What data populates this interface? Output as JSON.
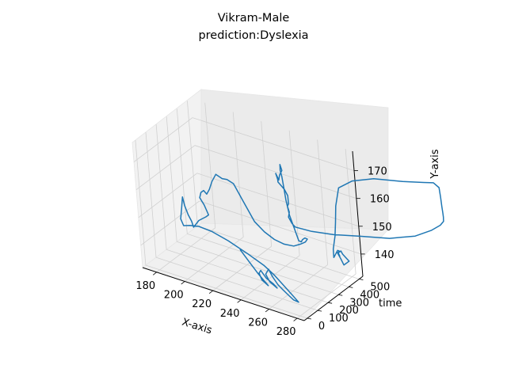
{
  "chart_data": {
    "type": "line",
    "projection": "3d",
    "title": [
      "Vikram-Male",
      "prediction:Dyslexia"
    ],
    "xlabel": "X-axis",
    "ylabel": "Y-axis",
    "zlabel": "time",
    "x_ticks": [
      "180",
      "200",
      "220",
      "240",
      "260",
      "280"
    ],
    "time_ticks": [
      "0",
      "100",
      "200",
      "300",
      "400",
      "500"
    ],
    "y_ticks": [
      "140",
      "150",
      "160",
      "170"
    ],
    "grid": true,
    "line_color": "#1f77b4",
    "series": [
      {
        "points": [
          [
            232,
            145,
            100
          ],
          [
            238,
            142,
            95
          ],
          [
            244,
            139,
            90
          ],
          [
            249,
            137,
            85
          ],
          [
            252,
            136,
            80
          ],
          [
            247,
            137,
            88
          ],
          [
            245,
            139,
            93
          ],
          [
            246,
            140,
            97
          ],
          [
            250,
            138,
            92
          ],
          [
            255,
            137,
            88
          ],
          [
            258,
            136,
            84
          ],
          [
            252,
            137,
            95
          ],
          [
            249,
            139,
            102
          ],
          [
            251,
            141,
            107
          ],
          [
            254,
            139,
            100
          ],
          [
            258,
            137,
            93
          ],
          [
            262,
            136,
            86
          ],
          [
            266,
            135,
            80
          ],
          [
            270,
            134,
            75
          ],
          [
            274,
            134,
            70
          ],
          [
            268,
            136,
            78
          ],
          [
            262,
            138,
            86
          ],
          [
            256,
            140,
            94
          ],
          [
            248,
            142,
            104
          ],
          [
            236,
            144,
            112
          ],
          [
            222,
            146,
            122
          ],
          [
            210,
            147,
            132
          ],
          [
            200,
            147,
            140
          ],
          [
            193,
            146,
            146
          ],
          [
            188,
            145,
            150
          ],
          [
            186,
            147,
            154
          ],
          [
            187,
            151,
            158
          ],
          [
            188,
            155,
            161
          ],
          [
            189,
            152,
            162
          ],
          [
            191,
            149,
            163
          ],
          [
            193,
            147,
            164
          ],
          [
            194,
            145,
            165
          ],
          [
            198,
            148,
            168
          ],
          [
            203,
            150,
            172
          ],
          [
            205,
            151,
            174
          ],
          [
            202,
            154,
            178
          ],
          [
            199,
            156,
            181
          ],
          [
            200,
            158,
            183
          ],
          [
            202,
            159,
            184
          ],
          [
            204,
            158,
            185
          ],
          [
            206,
            160,
            188
          ],
          [
            208,
            163,
            192
          ],
          [
            211,
            166,
            195
          ],
          [
            215,
            165,
            200
          ],
          [
            218,
            165,
            206
          ],
          [
            222,
            164,
            212
          ],
          [
            228,
            158,
            218
          ],
          [
            234,
            152,
            225
          ],
          [
            240,
            149,
            234
          ],
          [
            246,
            147,
            244
          ],
          [
            252,
            146,
            255
          ],
          [
            258,
            146,
            266
          ],
          [
            262,
            147,
            278
          ],
          [
            265,
            148,
            288
          ],
          [
            266,
            149,
            295
          ],
          [
            264,
            149,
            298
          ],
          [
            262,
            148,
            300
          ],
          [
            261,
            147,
            301
          ],
          [
            259,
            147,
            303
          ],
          [
            256,
            151,
            308
          ],
          [
            253,
            155,
            312
          ],
          [
            251,
            160,
            316
          ],
          [
            250,
            164,
            319
          ],
          [
            249,
            168,
            321
          ],
          [
            248,
            170,
            323
          ],
          [
            248,
            171,
            324
          ],
          [
            248,
            172,
            325
          ],
          [
            249,
            170,
            326
          ],
          [
            247,
            168,
            327
          ],
          [
            246,
            166,
            328
          ],
          [
            245,
            167,
            329
          ],
          [
            244,
            168,
            330
          ],
          [
            245,
            166,
            331
          ],
          [
            245,
            165,
            332
          ],
          [
            249,
            163,
            334
          ],
          [
            251,
            161,
            336
          ],
          [
            251,
            158,
            337
          ],
          [
            250,
            157,
            337
          ],
          [
            251,
            155,
            338
          ],
          [
            250,
            153,
            339
          ],
          [
            252,
            151,
            341
          ],
          [
            254,
            150,
            343
          ],
          [
            258,
            150,
            346
          ],
          [
            265,
            150,
            352
          ],
          [
            280,
            151,
            363
          ],
          [
            298,
            153,
            378
          ],
          [
            318,
            155,
            397
          ],
          [
            335,
            158,
            420
          ],
          [
            345,
            161,
            445
          ],
          [
            350,
            163,
            470
          ],
          [
            351,
            164,
            490
          ],
          [
            350,
            165,
            504
          ],
          [
            349,
            166,
            514
          ],
          [
            348,
            168,
            522
          ],
          [
            347,
            171,
            530
          ],
          [
            346,
            174,
            536
          ],
          [
            342,
            175,
            538
          ],
          [
            335,
            174,
            537
          ],
          [
            320,
            172,
            532
          ],
          [
            300,
            170,
            520
          ],
          [
            285,
            167,
            510
          ],
          [
            275,
            163,
            505
          ],
          [
            272,
            156,
            503
          ],
          [
            271,
            150,
            501
          ],
          [
            270,
            145,
            499
          ],
          [
            268,
            140,
            498
          ],
          [
            268,
            137,
            497
          ],
          [
            269,
            138,
            498
          ],
          [
            271,
            140,
            499
          ],
          [
            272,
            140,
            500
          ],
          [
            271,
            139,
            501
          ],
          [
            272,
            138,
            502
          ],
          [
            271,
            139,
            503
          ],
          [
            273,
            140,
            504
          ],
          [
            274,
            139,
            505
          ],
          [
            276,
            138,
            507
          ],
          [
            278,
            137,
            509
          ],
          [
            276,
            136,
            509
          ],
          [
            274,
            135,
            508
          ],
          [
            272,
            137,
            508
          ],
          [
            271,
            138,
            507
          ],
          [
            270,
            139,
            506
          ]
        ]
      }
    ]
  }
}
